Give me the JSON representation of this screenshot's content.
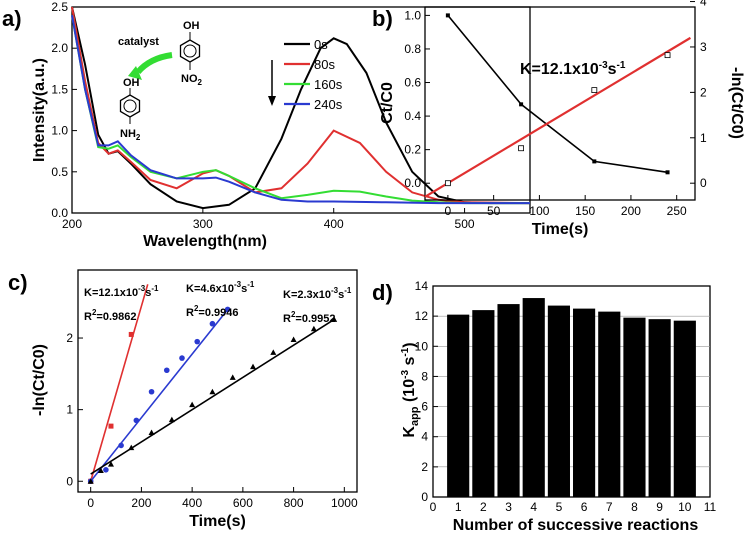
{
  "chart_data": [
    {
      "id": "a",
      "panel_label": "a)",
      "type": "line",
      "xlabel": "Wavelength(nm)",
      "ylabel": "Intensity(a.u.)",
      "xlim": [
        200,
        550
      ],
      "ylim": [
        0,
        2.5
      ],
      "xticks": [
        200,
        300,
        400,
        500
      ],
      "yticks": [
        0.0,
        0.5,
        1.0,
        1.5,
        2.0,
        2.5
      ],
      "yticklabels": [
        "0.0",
        "0.5",
        "1.0",
        "1.5",
        "2.0",
        "2.5"
      ],
      "series": [
        {
          "name": "0s",
          "color": "#000000",
          "x": [
            200,
            210,
            220,
            228,
            235,
            245,
            260,
            280,
            300,
            320,
            340,
            360,
            375,
            390,
            400,
            410,
            425,
            440,
            460,
            480,
            500,
            520,
            550
          ],
          "y": [
            2.5,
            1.8,
            0.95,
            0.72,
            0.75,
            0.6,
            0.35,
            0.14,
            0.06,
            0.1,
            0.3,
            0.9,
            1.5,
            2.0,
            2.12,
            2.05,
            1.7,
            1.1,
            0.5,
            0.2,
            0.13,
            0.12,
            0.12
          ]
        },
        {
          "name": "80s",
          "color": "#e03030",
          "x": [
            200,
            210,
            220,
            228,
            235,
            245,
            260,
            280,
            300,
            310,
            320,
            340,
            360,
            380,
            400,
            420,
            440,
            460,
            480,
            500,
            550
          ],
          "y": [
            2.5,
            1.6,
            0.85,
            0.72,
            0.76,
            0.62,
            0.4,
            0.3,
            0.48,
            0.52,
            0.45,
            0.25,
            0.3,
            0.6,
            1.0,
            0.85,
            0.5,
            0.25,
            0.16,
            0.13,
            0.12
          ]
        },
        {
          "name": "160s",
          "color": "#33dd33",
          "x": [
            200,
            210,
            220,
            228,
            235,
            245,
            260,
            280,
            300,
            310,
            320,
            340,
            360,
            380,
            400,
            420,
            440,
            460,
            480,
            500,
            550
          ],
          "y": [
            2.4,
            1.5,
            0.8,
            0.78,
            0.82,
            0.68,
            0.5,
            0.42,
            0.5,
            0.52,
            0.45,
            0.3,
            0.18,
            0.22,
            0.27,
            0.26,
            0.2,
            0.15,
            0.13,
            0.12,
            0.12
          ]
        },
        {
          "name": "240s",
          "color": "#2a3ad0",
          "x": [
            200,
            210,
            220,
            228,
            235,
            245,
            260,
            280,
            300,
            310,
            320,
            340,
            360,
            380,
            400,
            440,
            480,
            550
          ],
          "y": [
            2.4,
            1.5,
            0.82,
            0.82,
            0.87,
            0.7,
            0.52,
            0.42,
            0.42,
            0.43,
            0.38,
            0.25,
            0.16,
            0.14,
            0.14,
            0.13,
            0.12,
            0.12
          ]
        }
      ],
      "annotations": {
        "catalyst": "catalyst",
        "nitro": "NO",
        "nitro_sub": "2",
        "amino": "NH",
        "amino_sub": "2",
        "oh_top": "OH",
        "oh_bottom": "OH"
      }
    },
    {
      "id": "b",
      "panel_label": "b)",
      "type": "line",
      "xlabel": "Time(s)",
      "ylabel_left": "Ct/C0",
      "ylabel_right": "-ln(Ct/C0)",
      "xlim": [
        -25,
        270
      ],
      "ylim_left": [
        -0.1,
        1.05
      ],
      "ylim_right": [
        -0.37,
        3.88
      ],
      "xticks": [
        0,
        50,
        100,
        150,
        200,
        250
      ],
      "yticks_left": [
        0.0,
        0.2,
        0.4,
        0.6,
        0.8,
        1.0
      ],
      "yticklabels_left": [
        "0.0",
        "0.2",
        "0.4",
        "0.6",
        "0.8",
        "1.0"
      ],
      "yticks_right": [
        0,
        1,
        2,
        3,
        4
      ],
      "series": [
        {
          "name": "Ct/C0",
          "color": "#000000",
          "axis": "left",
          "x": [
            0,
            80,
            160,
            240
          ],
          "y": [
            1.0,
            0.47,
            0.13,
            0.065
          ]
        },
        {
          "name": "-ln(Ct/C0)",
          "color": "#ffffff",
          "axis": "right",
          "marker": "open-square",
          "x": [
            0,
            80,
            160,
            240
          ],
          "y": [
            0.0,
            0.77,
            2.05,
            2.82
          ]
        },
        {
          "name": "fit",
          "color": "#e03030",
          "axis": "right",
          "x": [
            -25,
            265
          ],
          "y": [
            -0.3,
            3.2
          ]
        }
      ],
      "annotation": {
        "k_text": "K=12.1x10",
        "k_exp": "-3",
        "k_unit": "s",
        "k_unit_exp": "-1"
      }
    },
    {
      "id": "c",
      "panel_label": "c)",
      "type": "scatter",
      "xlabel": "Time(s)",
      "ylabel": "-ln(Ct/C0)",
      "xlim": [
        -50,
        1050
      ],
      "ylim": [
        -0.15,
        2.95
      ],
      "xticks": [
        0,
        200,
        400,
        600,
        800,
        1000
      ],
      "yticks": [
        0,
        1,
        2
      ],
      "series": [
        {
          "name": "red",
          "color": "#e03030",
          "marker": "square",
          "x": [
            0,
            80,
            160
          ],
          "y": [
            0.0,
            0.77,
            2.05
          ],
          "fit_x": [
            0,
            225
          ],
          "fit_y": [
            0.0,
            2.75
          ]
        },
        {
          "name": "blue",
          "color": "#2a3ad0",
          "marker": "circle",
          "x": [
            0,
            60,
            120,
            180,
            240,
            300,
            360,
            420,
            480,
            540
          ],
          "y": [
            0.0,
            0.16,
            0.5,
            0.85,
            1.25,
            1.55,
            1.72,
            1.95,
            2.2,
            2.4
          ],
          "fit_x": [
            0,
            545
          ],
          "fit_y": [
            0.0,
            2.42
          ]
        },
        {
          "name": "black",
          "color": "#000000",
          "marker": "triangle",
          "x": [
            0,
            40,
            80,
            160,
            240,
            320,
            400,
            480,
            560,
            640,
            720,
            800,
            880,
            960
          ],
          "y": [
            0.0,
            0.15,
            0.24,
            0.47,
            0.68,
            0.86,
            1.07,
            1.25,
            1.45,
            1.6,
            1.8,
            1.98,
            2.13,
            2.26
          ],
          "fit_x": [
            0,
            960
          ],
          "fit_y": [
            0.1,
            2.26
          ]
        }
      ],
      "annotations": [
        {
          "k": "K=12.1x10",
          "r2": "0.9862"
        },
        {
          "k": "K=4.6x10",
          "r2": "0.9946"
        },
        {
          "k": "K=2.3x10",
          "r2": "0.9952"
        }
      ]
    },
    {
      "id": "d",
      "panel_label": "d)",
      "type": "bar",
      "xlabel": "Number of successive reactions",
      "ylabel": "Kapp (10-3 s-1)",
      "xlim": [
        0,
        11
      ],
      "ylim": [
        0,
        14
      ],
      "xticks": [
        0,
        1,
        2,
        3,
        4,
        5,
        6,
        7,
        8,
        9,
        10,
        11
      ],
      "yticks": [
        0,
        2,
        4,
        6,
        8,
        10,
        12,
        14
      ],
      "categories": [
        1,
        2,
        3,
        4,
        5,
        6,
        7,
        8,
        9,
        10
      ],
      "values": [
        12.1,
        12.4,
        12.8,
        13.2,
        12.7,
        12.5,
        12.3,
        11.9,
        11.8,
        11.7
      ],
      "bar_color": "#000000"
    }
  ]
}
